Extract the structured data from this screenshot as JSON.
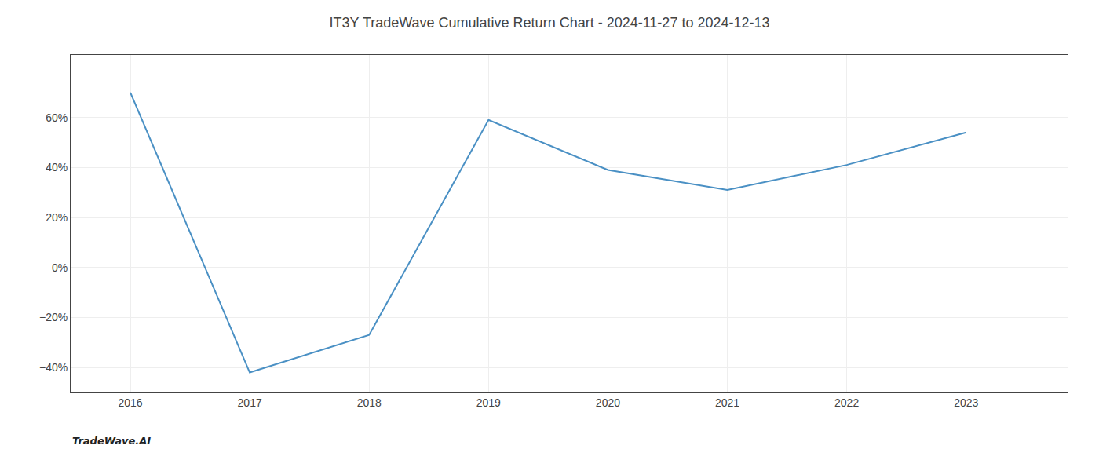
{
  "chart_data": {
    "type": "line",
    "title": "IT3Y TradeWave Cumulative Return Chart - 2024-11-27 to 2024-12-13",
    "annotations": [
      "TradeWave.AI"
    ],
    "x": [
      2016,
      2017,
      2018,
      2019,
      2020,
      2021,
      2022,
      2023
    ],
    "values": [
      70,
      -42,
      -27,
      59,
      39,
      31,
      41,
      54
    ],
    "color": "#4a90c4",
    "xlim": [
      2015.5,
      2023.85
    ],
    "ylim": [
      -50,
      85
    ],
    "xticks": [
      2016,
      2017,
      2018,
      2019,
      2020,
      2021,
      2022,
      2023
    ],
    "yticks": [
      {
        "value": -40,
        "label": "−40%"
      },
      {
        "value": -20,
        "label": "−20%"
      },
      {
        "value": 0,
        "label": "0%"
      },
      {
        "value": 20,
        "label": "20%"
      },
      {
        "value": 40,
        "label": "40%"
      },
      {
        "value": 60,
        "label": "60%"
      }
    ],
    "grid": true
  }
}
